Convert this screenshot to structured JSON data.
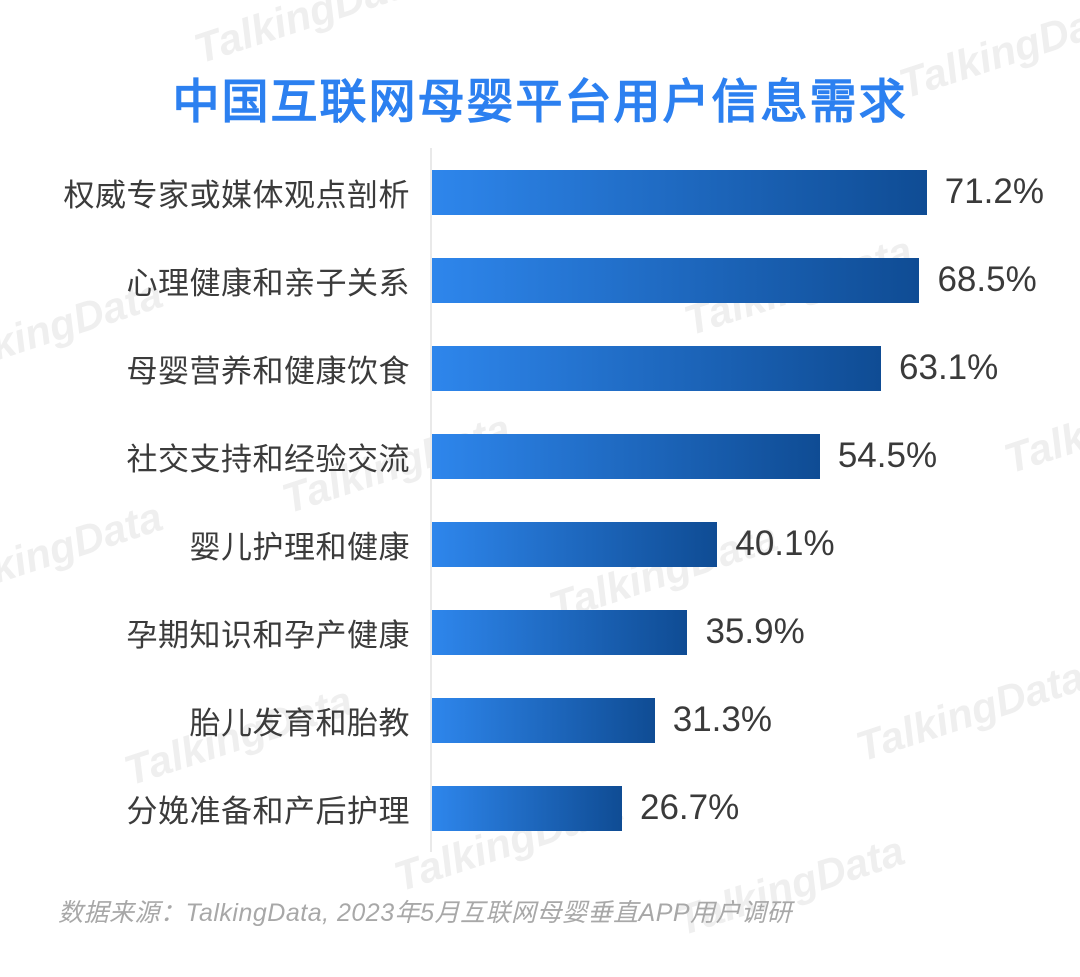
{
  "title": "中国互联网母婴平台用户信息需求",
  "watermark_text": "TalkingData",
  "footer": "数据来源：TalkingData, 2023年5月互联网母婴垂直APP用户调研",
  "colors": {
    "title": "#2C80F0",
    "bar_start": "#2E86EC",
    "bar_end": "#0F4C94",
    "axis": "#E9E9E9",
    "label": "#3B3B3B",
    "value": "#3A3A3A",
    "footer": "#A8A8A8",
    "watermark": "#EFEFEF"
  },
  "chart_data": {
    "type": "bar",
    "orientation": "horizontal",
    "title": "中国互联网母婴平台用户信息需求",
    "categories": [
      "权威专家或媒体观点剖析",
      "心理健康和亲子关系",
      "母婴营养和健康饮食",
      "社交支持和经验交流",
      "婴儿护理和健康",
      "孕期知识和孕产健康",
      "胎儿发育和胎教",
      "分娩准备和产后护理"
    ],
    "values": [
      71.2,
      68.5,
      63.1,
      54.5,
      40.1,
      35.9,
      31.3,
      26.7
    ],
    "value_labels": [
      "71.2%",
      "68.5%",
      "63.1%",
      "54.5%",
      "40.1%",
      "35.9%",
      "31.3%",
      "26.7%"
    ],
    "xlabel": "",
    "ylabel": "",
    "xlim": [
      0,
      86
    ],
    "grid": false,
    "legend": "none",
    "bar_style": "gradient left-to-right light blue to dark navy",
    "value_label_position": "right of bar end",
    "source": "TalkingData, 2023年5月互联网母婴垂直APP用户调研"
  }
}
